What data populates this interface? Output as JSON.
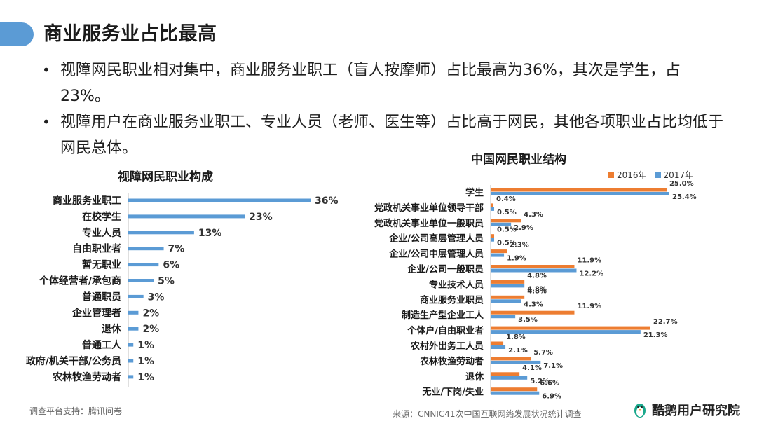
{
  "page": {
    "title": "商业服务业占比最高",
    "bullets": [
      "视障网民职业相对集中，商业服务业职工（盲人按摩师）占比最高为36%，其次是学生，占23%。",
      "视障用户在商业服务业职工、专业人员（老师、医生等）占比高于网民，其他各项职业占比均低于网民总体。"
    ],
    "footer_left": "调查平台支持：腾讯问卷",
    "source": "来源：CNNIC41次中国互联网络发展状况统计调查",
    "logo_text": "酷鹅用户研究院",
    "logo_icon": "penguin-icon"
  },
  "colors": {
    "accent": "#5b9bd5",
    "orange": "#ed7d31",
    "blue": "#5b9bd5"
  },
  "chart_data": [
    {
      "type": "bar",
      "orientation": "horizontal",
      "title": "视障网民职业构成",
      "categories": [
        "商业服务业职工",
        "在校学生",
        "专业人员",
        "自由职业者",
        "暂无职业",
        "个体经营者/承包商",
        "普通职员",
        "企业管理者",
        "退休",
        "普通工人",
        "政府/机关干部/公务员",
        "农林牧渔劳动者"
      ],
      "values": [
        36,
        23,
        13,
        7,
        6,
        5,
        3,
        2,
        2,
        1,
        1,
        1
      ],
      "value_labels": [
        "36%",
        "23%",
        "13%",
        "7%",
        "6%",
        "5%",
        "3%",
        "2%",
        "2%",
        "1%",
        "1%",
        "1%"
      ],
      "unit": "%",
      "xlim": [
        0,
        36
      ]
    },
    {
      "type": "bar",
      "orientation": "horizontal",
      "title": "中国网民职业结构",
      "categories": [
        "学生",
        "党政机关事业单位领导干部",
        "党政机关事业单位一般职员",
        "企业/公司高层管理人员",
        "企业/公司中层管理人员",
        "企业/公司一般职员",
        "专业技术人员",
        "商业服务业职员",
        "制造生产型企业工人",
        "个体户/自由职业者",
        "农村外出务工人员",
        "农林牧渔劳动者",
        "退休",
        "无业/下岗/失业"
      ],
      "series": [
        {
          "name": "2016年",
          "color": "#ed7d31",
          "values": [
            25.0,
            0.4,
            4.3,
            0.5,
            2.3,
            11.9,
            4.8,
            4.8,
            11.9,
            22.7,
            1.8,
            5.7,
            4.1,
            6.6
          ],
          "value_labels": [
            "25.0%",
            "0.4%",
            "4.3%",
            "0.5%",
            "2.3%",
            "11.9%",
            "4.8%",
            "4.8%",
            "11.9%",
            "22.7%",
            "1.8%",
            "5.7%",
            "4.1%",
            "6.6%"
          ]
        },
        {
          "name": "2017年",
          "color": "#5b9bd5",
          "values": [
            25.4,
            0.5,
            2.9,
            0.5,
            1.9,
            12.2,
            4.8,
            4.3,
            3.5,
            21.3,
            2.1,
            7.1,
            5.2,
            6.9
          ],
          "value_labels": [
            "25.4%",
            "0.5%",
            "2.9%",
            "0.5%",
            "1.9%",
            "12.2%",
            "4.8%",
            "4.3%",
            "3.5%",
            "21.3%",
            "2.1%",
            "7.1%",
            "5.2%",
            "6.9%"
          ]
        }
      ],
      "unit": "%",
      "xlim": [
        0,
        25.4
      ],
      "legend": "top-right"
    }
  ]
}
